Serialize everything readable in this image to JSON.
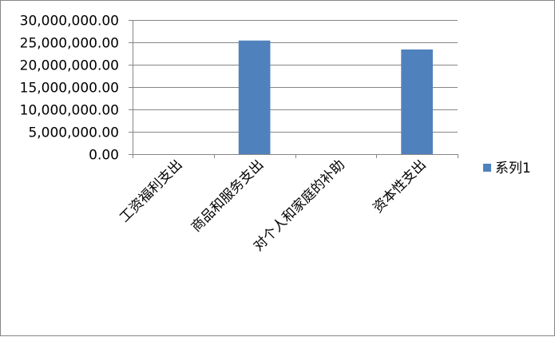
{
  "chart_data": {
    "type": "bar",
    "categories": [
      "工资福利支出",
      "商品和服务支出",
      "对个人和家庭的补助",
      "资本性支出"
    ],
    "series": [
      {
        "name": "系列1",
        "values": [
          0,
          25400000,
          0,
          23400000
        ]
      }
    ],
    "ylim": [
      0,
      30000000
    ],
    "yticks": [
      0,
      5000000,
      10000000,
      15000000,
      20000000,
      25000000,
      30000000
    ],
    "ytick_labels": [
      "0.00",
      "5,000,000.00",
      "10,000,000.00",
      "15,000,000.00",
      "20,000,000.00",
      "25,000,000.00",
      "30,000,000.00"
    ],
    "grid": true,
    "legend_position": "right",
    "colors": {
      "series": "#4F81BD",
      "grid": "#868686",
      "axis": "#868686"
    }
  }
}
